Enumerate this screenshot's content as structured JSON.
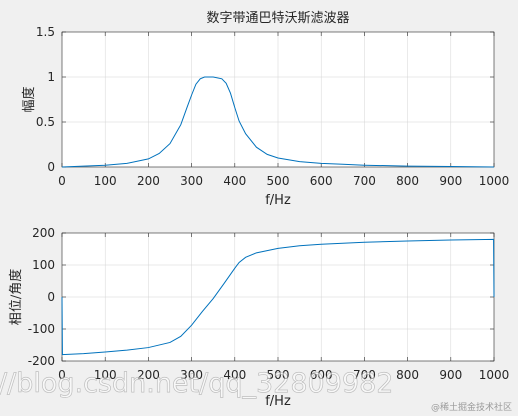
{
  "chart_data": [
    {
      "type": "line",
      "title": "数字带通巴特沃斯滤波器",
      "xlabel": "f/Hz",
      "ylabel": "幅度",
      "xlim": [
        0,
        1000
      ],
      "ylim": [
        0,
        1.5
      ],
      "xticks": [
        "0",
        "100",
        "200",
        "300",
        "400",
        "500",
        "600",
        "700",
        "800",
        "900",
        "1000"
      ],
      "yticks": [
        "0",
        "0.5",
        "1",
        "1.5"
      ],
      "grid": true,
      "color": "#0072bd",
      "x": [
        0,
        50,
        100,
        150,
        200,
        225,
        250,
        275,
        290,
        300,
        310,
        320,
        330,
        350,
        370,
        380,
        390,
        400,
        410,
        425,
        450,
        475,
        500,
        550,
        600,
        650,
        700,
        800,
        900,
        1000
      ],
      "y": [
        0,
        0.01,
        0.02,
        0.04,
        0.09,
        0.15,
        0.26,
        0.47,
        0.67,
        0.8,
        0.92,
        0.98,
        1.0,
        1.0,
        0.98,
        0.93,
        0.82,
        0.66,
        0.51,
        0.37,
        0.22,
        0.14,
        0.1,
        0.06,
        0.04,
        0.03,
        0.02,
        0.01,
        0.005,
        0
      ]
    },
    {
      "type": "line",
      "title": "",
      "xlabel": "f/Hz",
      "ylabel": "相位/角度",
      "xlim": [
        0,
        1000
      ],
      "ylim": [
        -200,
        200
      ],
      "xticks": [
        "0",
        "100",
        "200",
        "300",
        "400",
        "500",
        "600",
        "700",
        "800",
        "900",
        "1000"
      ],
      "yticks": [
        "-200",
        "-100",
        "0",
        "100",
        "200"
      ],
      "grid": true,
      "color": "#0072bd",
      "x": [
        0,
        1,
        50,
        100,
        150,
        200,
        250,
        275,
        300,
        325,
        350,
        375,
        400,
        410,
        425,
        450,
        500,
        550,
        600,
        700,
        800,
        900,
        999,
        1000
      ],
      "y": [
        0,
        -180,
        -177,
        -172,
        -166,
        -158,
        -142,
        -123,
        -88,
        -45,
        -5,
        42,
        90,
        108,
        124,
        138,
        152,
        160,
        165,
        171,
        175,
        178,
        180,
        0
      ]
    }
  ],
  "watermarks": {
    "url": "//blog.csdn.net/qq_32809982",
    "brand": "@稀土掘金技术社区"
  }
}
